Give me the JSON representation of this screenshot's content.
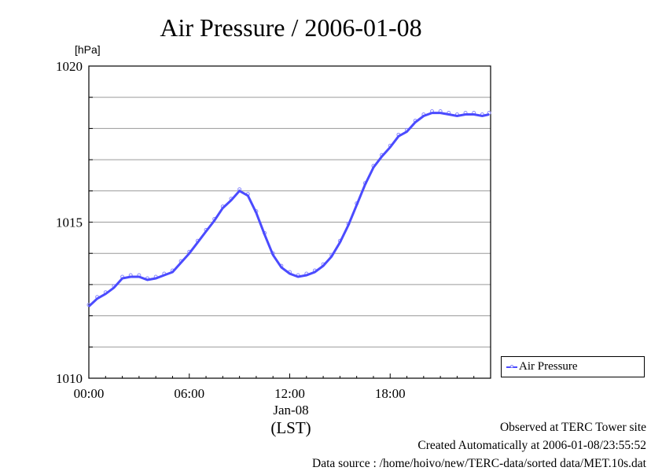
{
  "chart_data": {
    "type": "line",
    "title": "Air Pressure / 2006-01-08",
    "ylabel": "[hPa]",
    "xlabel": "(LST)",
    "x_date_label": "Jan-08",
    "ylim": [
      1010,
      1020
    ],
    "xlim": [
      "2006-01-08 00:00",
      "2006-01-09 00:00"
    ],
    "y_ticks": [
      "1010",
      "1015",
      "1020"
    ],
    "x_ticks": [
      "00:00",
      "06:00",
      "12:00",
      "18:00"
    ],
    "grid": true,
    "legend_position": "right",
    "series": [
      {
        "name": "Air Pressure",
        "color": "#4b4bff",
        "marker_color": "#8a8aff",
        "x": [
          "00:00",
          "00:30",
          "01:00",
          "01:30",
          "02:00",
          "02:30",
          "03:00",
          "03:30",
          "04:00",
          "04:30",
          "05:00",
          "05:30",
          "06:00",
          "06:30",
          "07:00",
          "07:30",
          "08:00",
          "08:30",
          "09:00",
          "09:30",
          "10:00",
          "10:30",
          "11:00",
          "11:30",
          "12:00",
          "12:30",
          "13:00",
          "13:30",
          "14:00",
          "14:30",
          "15:00",
          "15:30",
          "16:00",
          "16:30",
          "17:00",
          "17:30",
          "18:00",
          "18:30",
          "19:00",
          "19:30",
          "20:00",
          "20:30",
          "21:00",
          "21:30",
          "22:00",
          "22:30",
          "23:00",
          "23:30",
          "23:55"
        ],
        "values": [
          1012.3,
          1012.55,
          1012.7,
          1012.9,
          1013.2,
          1013.25,
          1013.25,
          1013.15,
          1013.2,
          1013.3,
          1013.4,
          1013.7,
          1014.0,
          1014.35,
          1014.7,
          1015.05,
          1015.45,
          1015.7,
          1016.0,
          1015.85,
          1015.3,
          1014.6,
          1013.95,
          1013.55,
          1013.35,
          1013.25,
          1013.3,
          1013.4,
          1013.6,
          1013.9,
          1014.35,
          1014.9,
          1015.55,
          1016.2,
          1016.75,
          1017.1,
          1017.4,
          1017.75,
          1017.9,
          1018.2,
          1018.4,
          1018.5,
          1018.5,
          1018.45,
          1018.4,
          1018.45,
          1018.45,
          1018.4,
          1018.45
        ]
      }
    ]
  },
  "footer": {
    "line1": "Observed at TERC Tower site",
    "line2": "Created Automatically at 2006-01-08/23:55:52",
    "line3": "Data source : /home/hoivo/new/TERC-data/sorted  data/MET.10s.dat"
  }
}
